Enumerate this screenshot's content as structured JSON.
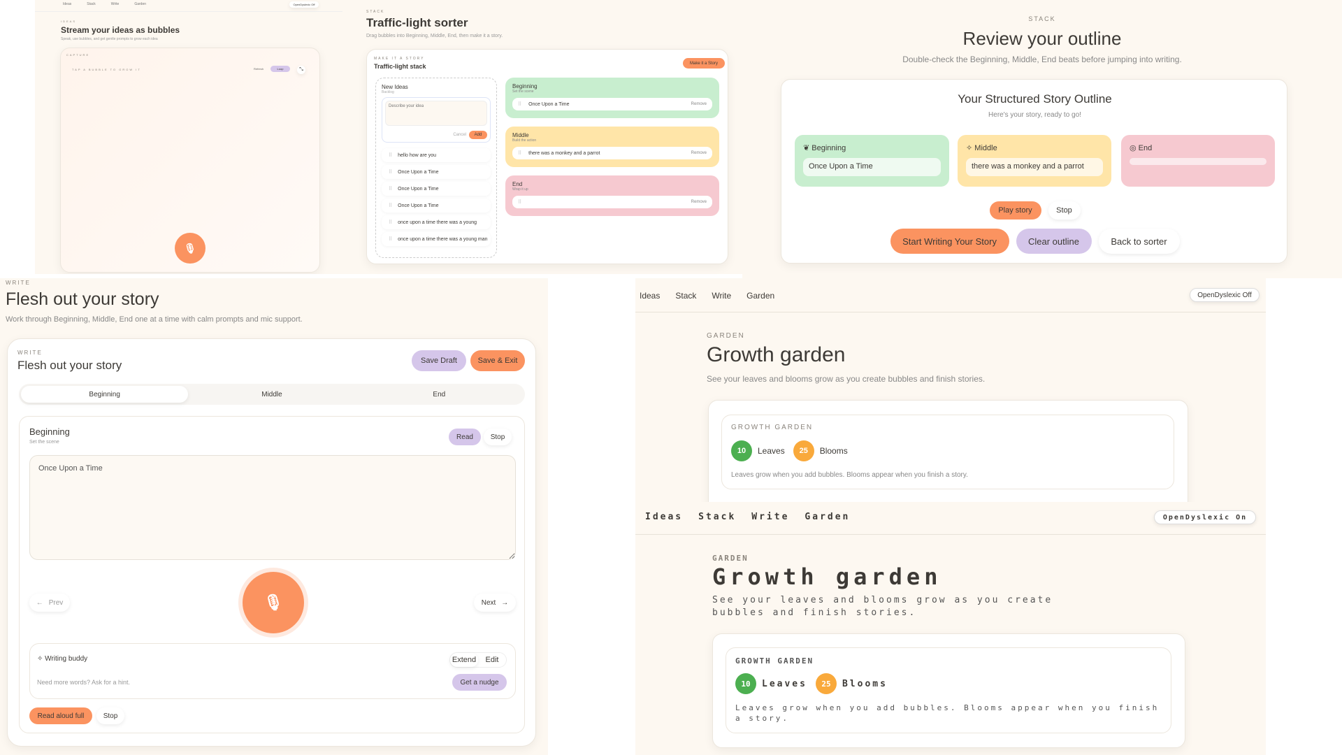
{
  "ideas": {
    "nav": [
      "Ideas",
      "Stack",
      "Write",
      "Garden"
    ],
    "dyslexic_toggle": "OpenDyslexic Off",
    "eyebrow": "IDEAS",
    "title": "Stream your ideas as bubbles",
    "subtitle": "Speak, use bubbles, and get gentle prompts to grow each idea",
    "card_label": "CAPTURE",
    "hint": "TAP A BUBBLE TO GROW IT",
    "refresh": "Refresh",
    "loop": "Loop",
    "mic_icon": "microphone-icon"
  },
  "sorter": {
    "eyebrow": "STACK",
    "title": "Traffic-light sorter",
    "subtitle": "Drag bubbles into Beginning, Middle, End, then make it a story.",
    "card_eyebrow": "MAKE IT A STORY",
    "card_title": "Traffic-light stack",
    "make_story": "Make it a Story",
    "new_ideas": {
      "title": "New Ideas",
      "sub": "Backlog",
      "placeholder": "Describe your idea",
      "cancel": "Cancel",
      "add": "Add",
      "items": [
        "hello how are you",
        "Once Upon a Time",
        "Once Upon a Time",
        "Once Upon a Time",
        "once upon a time there was a young",
        "once upon a time there was a young man"
      ]
    },
    "lanes": [
      {
        "title": "Beginning",
        "sub": "Set the scene",
        "item": "Once Upon a Time",
        "color": "#c8eecf"
      },
      {
        "title": "Middle",
        "sub": "Build the action",
        "item": "there was a monkey and a parrot",
        "color": "#ffe5a8"
      },
      {
        "title": "End",
        "sub": "Wrap it up",
        "item": "",
        "color": "#f6c9d0"
      }
    ],
    "remove": "Remove"
  },
  "review": {
    "eyebrow": "STACK",
    "title": "Review your outline",
    "subtitle": "Double-check the Beginning, Middle, End beats before jumping into writing.",
    "card_title": "Your Structured Story Outline",
    "card_sub": "Here's your story, ready to go!",
    "lanes": [
      {
        "title": "Beginning",
        "value": "Once Upon a Time",
        "icon": "leaf-icon"
      },
      {
        "title": "Middle",
        "value": "there was a monkey and a parrot",
        "icon": "sparkle-icon"
      },
      {
        "title": "End",
        "value": "",
        "icon": "target-icon"
      }
    ],
    "play": "Play story",
    "stop": "Stop",
    "start": "Start Writing Your Story",
    "clear": "Clear outline",
    "back": "Back to sorter"
  },
  "write": {
    "eyebrow": "WRITE",
    "title": "Flesh out your story",
    "subtitle": "Work through Beginning, Middle, End one at a time with calm prompts and mic support.",
    "card_eyebrow": "WRITE",
    "card_title": "Flesh out your story",
    "save_draft": "Save Draft",
    "save_exit": "Save & Exit",
    "tabs": [
      "Beginning",
      "Middle",
      "End"
    ],
    "section_title": "Beginning",
    "section_sub": "Set the scene",
    "read": "Read",
    "stop": "Stop",
    "text": "Once Upon a Time",
    "prev": "Prev",
    "next": "Next",
    "buddy": {
      "title": "Writing buddy",
      "extend": "Extend",
      "edit": "Edit",
      "hint": "Need more words? Ask for a hint.",
      "nudge": "Get a nudge"
    },
    "read_full": "Read aloud full",
    "stop_full": "Stop"
  },
  "garden_off": {
    "nav": [
      "Ideas",
      "Stack",
      "Write",
      "Garden"
    ],
    "toggle": "OpenDyslexic Off",
    "eyebrow": "GARDEN",
    "title": "Growth garden",
    "subtitle": "See your leaves and blooms grow as you create bubbles and finish stories.",
    "card_eyebrow": "GROWTH GARDEN",
    "leaves": "10",
    "leaves_label": "Leaves",
    "blooms": "25",
    "blooms_label": "Blooms",
    "note": "Leaves grow when you add bubbles. Blooms appear when you finish a story."
  },
  "garden_on": {
    "nav": [
      "Ideas",
      "Stack",
      "Write",
      "Garden"
    ],
    "toggle": "OpenDyslexic On",
    "eyebrow": "GARDEN",
    "title": "Growth garden",
    "subtitle": "See your leaves and blooms grow as you create bubbles and finish stories.",
    "card_eyebrow": "GROWTH GARDEN",
    "leaves": "10",
    "leaves_label": "Leaves",
    "blooms": "25",
    "blooms_label": "Blooms",
    "note": "Leaves grow when you add bubbles. Blooms appear when you finish a story."
  },
  "colors": {
    "accent": "#fb9360",
    "lavender": "#d5c6ea",
    "leaf": "#4caf50",
    "bloom": "#f9a93b",
    "bg": "#fdf8f1"
  }
}
